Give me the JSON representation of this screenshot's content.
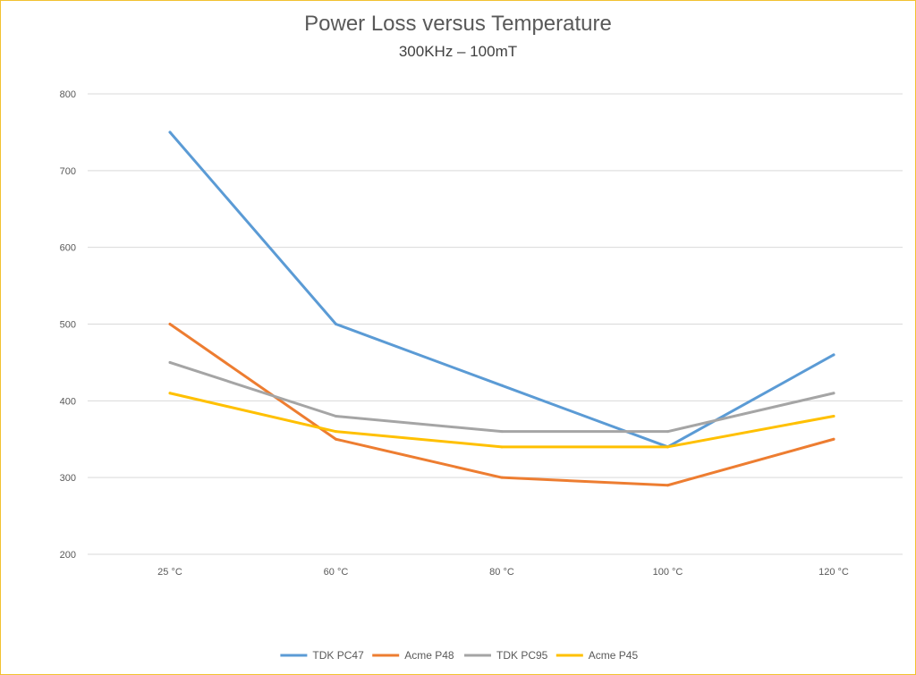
{
  "chart_data": {
    "type": "line",
    "title": "Power Loss versus Temperature",
    "subtitle": "300KHz – 100mT",
    "xlabel": "",
    "ylabel": "",
    "categories": [
      "25 °C",
      "60 °C",
      "80 °C",
      "100 °C",
      "120 °C"
    ],
    "ylim": [
      200,
      800
    ],
    "yticks": [
      200,
      300,
      400,
      500,
      600,
      700,
      800
    ],
    "grid": true,
    "legend_position": "bottom",
    "series": [
      {
        "name": "TDK PC47",
        "color": "#5b9bd5",
        "values": [
          750,
          500,
          420,
          340,
          460
        ]
      },
      {
        "name": "Acme P48",
        "color": "#ed7d31",
        "values": [
          500,
          350,
          300,
          290,
          350
        ]
      },
      {
        "name": "TDK PC95",
        "color": "#a5a5a5",
        "values": [
          450,
          380,
          360,
          360,
          410
        ]
      },
      {
        "name": "Acme P45",
        "color": "#ffc000",
        "values": [
          410,
          360,
          340,
          340,
          380
        ]
      }
    ]
  }
}
